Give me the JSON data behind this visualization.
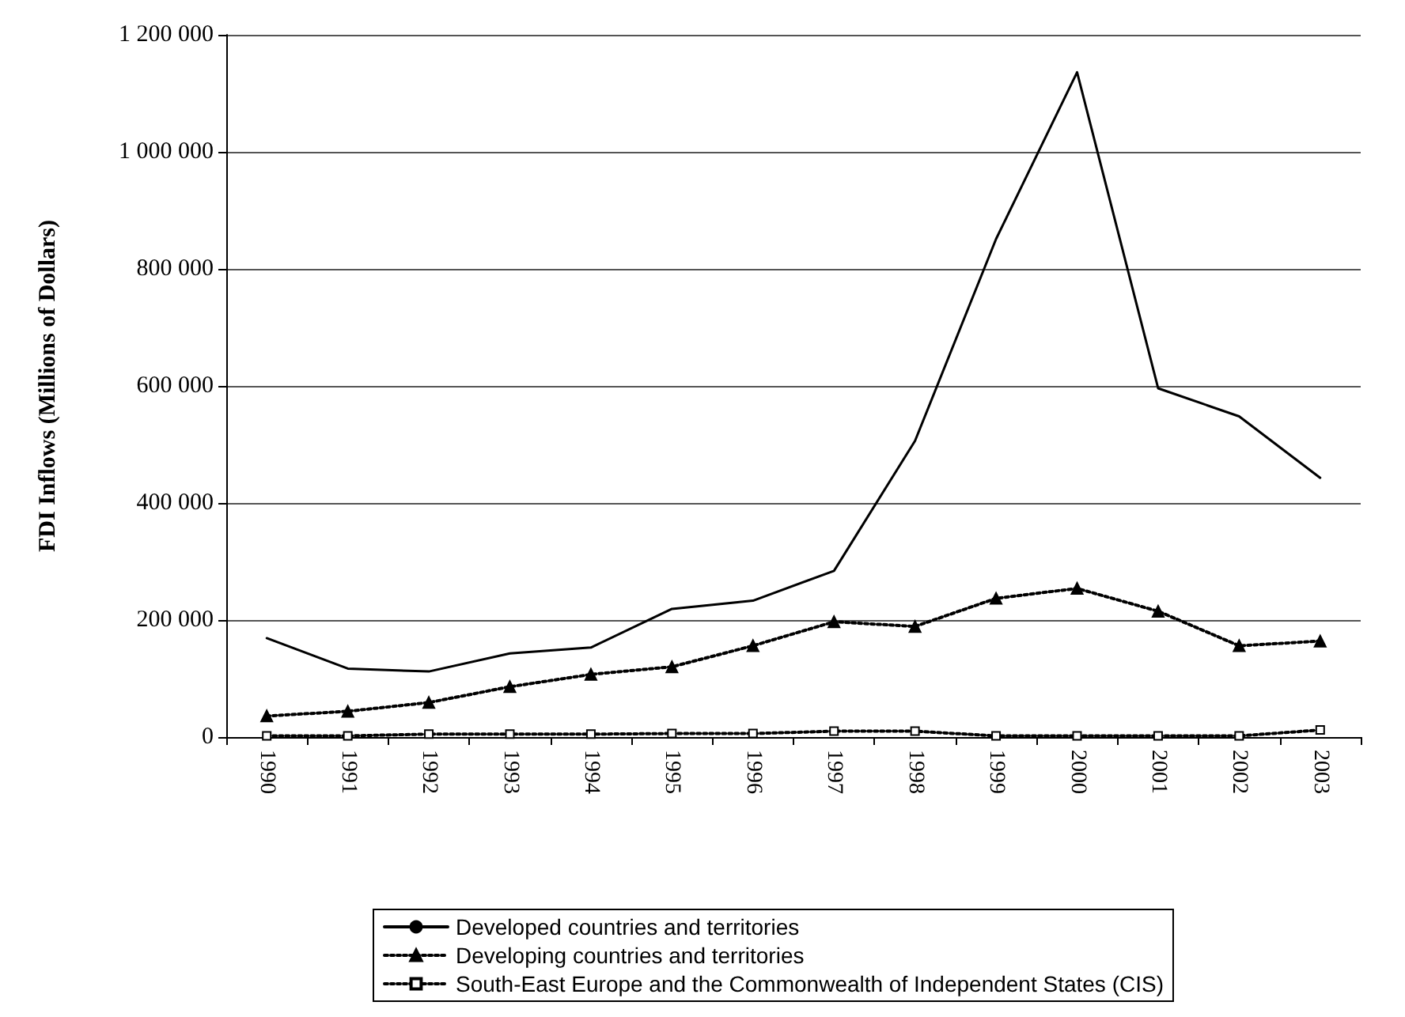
{
  "chart_data": {
    "type": "line",
    "ylabel": "FDI Inflows (Millions of Dollars)",
    "categories": [
      "1990",
      "1991",
      "1992",
      "1993",
      "1994",
      "1995",
      "1996",
      "1997",
      "1998",
      "1999",
      "2000",
      "2001",
      "2002",
      "2003"
    ],
    "series": [
      {
        "name": "Developed countries and territories",
        "color": "#000000",
        "marker": "none",
        "line_style": "solid",
        "values": [
          169000,
          117000,
          112000,
          143000,
          153000,
          219000,
          233000,
          284000,
          506000,
          851000,
          1136000,
          596000,
          548000,
          443000
        ]
      },
      {
        "name": "Developing countries and territories",
        "color": "#000000",
        "marker": "triangle",
        "line_style": "dotted",
        "values": [
          36000,
          44000,
          59000,
          86000,
          107000,
          120000,
          156000,
          197000,
          189000,
          237000,
          254000,
          215000,
          156000,
          164000
        ]
      },
      {
        "name": "South-East Europe and the Commonwealth of Independent States (CIS)",
        "color": "#000000",
        "marker": "square",
        "line_style": "dotted",
        "values": [
          2000,
          2000,
          5000,
          5000,
          5000,
          6000,
          6000,
          10000,
          10000,
          2000,
          2000,
          2000,
          2000,
          12000
        ]
      }
    ],
    "ylim": [
      0,
      1200000
    ],
    "yticks": [
      {
        "value": 0,
        "label": "0"
      },
      {
        "value": 200000,
        "label": "200 000"
      },
      {
        "value": 400000,
        "label": "400 000"
      },
      {
        "value": 600000,
        "label": "600 000"
      },
      {
        "value": 800000,
        "label": "800 000"
      },
      {
        "value": 1000000,
        "label": "1 000 000"
      },
      {
        "value": 1200000,
        "label": "1 200 000"
      }
    ],
    "grid": "y",
    "legend": "bottom"
  }
}
